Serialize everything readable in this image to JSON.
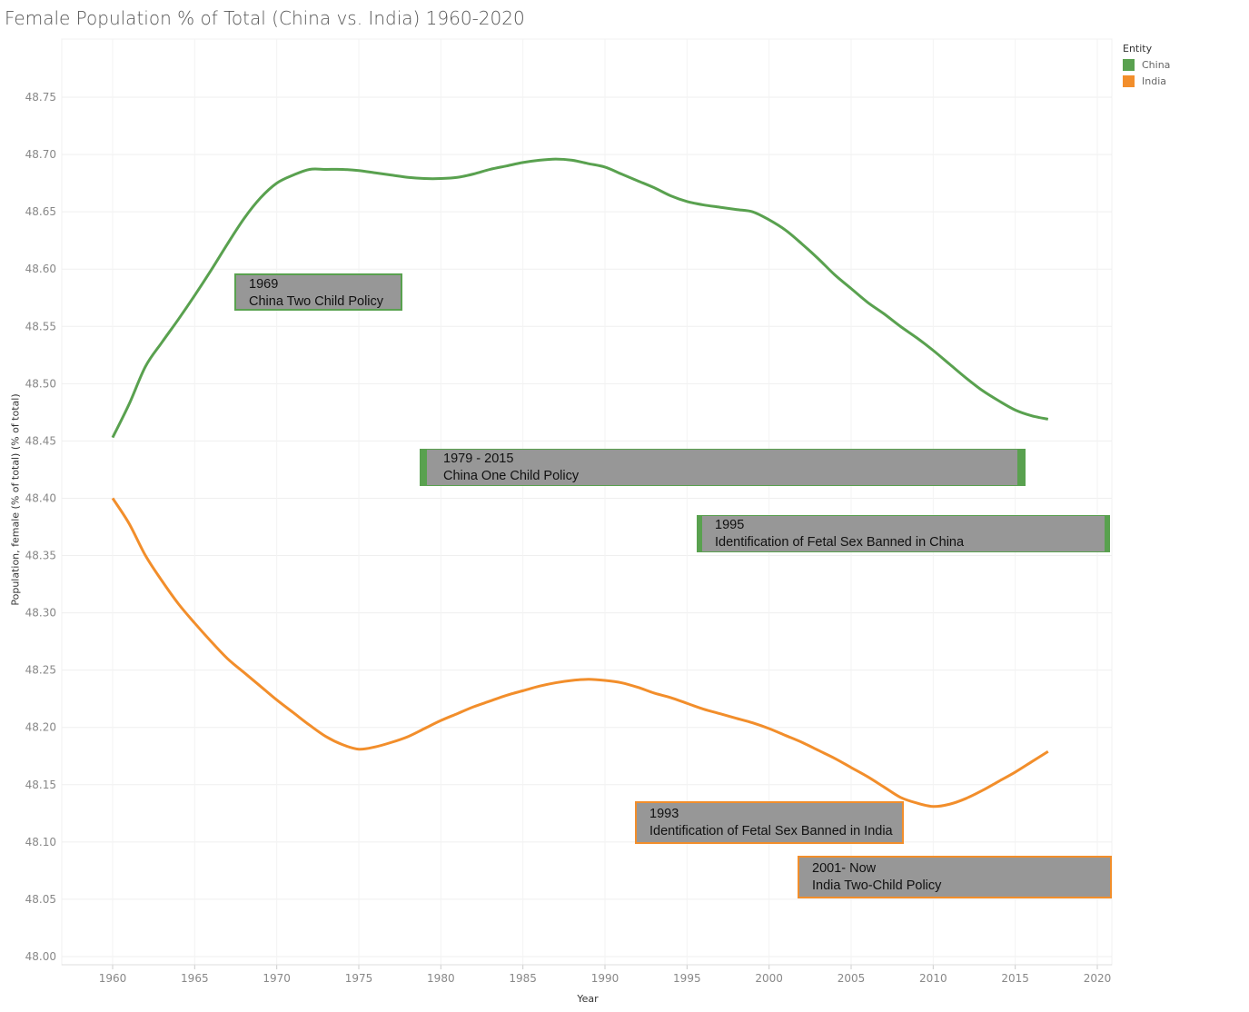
{
  "title": "Female Population % of Total (China vs. India) 1960-2020",
  "legend": {
    "title": "Entity",
    "items": [
      {
        "label": "China",
        "color": "#59a14f"
      },
      {
        "label": "India",
        "color": "#f28e2b"
      }
    ]
  },
  "annotations": [
    {
      "line1": "1969",
      "line2": "China Two Child  Policy",
      "entity": "China"
    },
    {
      "line1": "1979 - 2015",
      "line2": "China One Child  Policy",
      "entity": "China"
    },
    {
      "line1": "1995",
      "line2": "Identification of Fetal Sex Banned in China",
      "entity": "China"
    },
    {
      "line1": "1993",
      "line2": "Identification of Fetal Sex Banned in India",
      "entity": "India"
    },
    {
      "line1": "2001- Now",
      "line2": "India Two-Child Policy",
      "entity": "India"
    }
  ],
  "chart_data": {
    "type": "line",
    "title": "Female Population % of Total (China vs. India) 1960-2020",
    "xlabel": "Year",
    "ylabel": "Population, female (% of total) (% of total)",
    "xlim": [
      1957,
      2021
    ],
    "ylim": [
      48.0,
      48.8
    ],
    "xticks": [
      1960,
      1965,
      1970,
      1975,
      1980,
      1985,
      1990,
      1995,
      2000,
      2005,
      2010,
      2015,
      2020
    ],
    "yticks": [
      "48.00",
      "48.05",
      "48.10",
      "48.15",
      "48.20",
      "48.25",
      "48.30",
      "48.35",
      "48.40",
      "48.45",
      "48.50",
      "48.55",
      "48.60",
      "48.65",
      "48.70",
      "48.75"
    ],
    "grid": true,
    "legend_position": "top-right",
    "x_start": 1960,
    "series": [
      {
        "name": "China",
        "color": "#59a14f",
        "values": [
          48.453,
          48.482,
          48.515,
          48.536,
          48.556,
          48.577,
          48.599,
          48.622,
          48.644,
          48.662,
          48.675,
          48.682,
          48.687,
          48.687,
          48.687,
          48.686,
          48.684,
          48.682,
          48.68,
          48.679,
          48.679,
          48.68,
          48.683,
          48.687,
          48.69,
          48.693,
          48.695,
          48.696,
          48.695,
          48.692,
          48.689,
          48.683,
          48.677,
          48.671,
          48.664,
          48.659,
          48.656,
          48.654,
          48.652,
          48.65,
          48.643,
          48.634,
          48.622,
          48.609,
          48.595,
          48.583,
          48.571,
          48.561,
          48.55,
          48.54,
          48.529,
          48.517,
          48.505,
          48.494,
          48.485,
          48.477,
          48.472,
          48.469
        ]
      },
      {
        "name": "India",
        "color": "#f28e2b",
        "values": [
          48.4,
          48.378,
          48.35,
          48.328,
          48.308,
          48.291,
          48.275,
          48.26,
          48.248,
          48.236,
          48.224,
          48.213,
          48.202,
          48.192,
          48.185,
          48.181,
          48.183,
          48.187,
          48.192,
          48.199,
          48.206,
          48.212,
          48.218,
          48.223,
          48.228,
          48.232,
          48.236,
          48.239,
          48.241,
          48.242,
          48.241,
          48.239,
          48.235,
          48.23,
          48.226,
          48.221,
          48.216,
          48.212,
          48.208,
          48.204,
          48.199,
          48.193,
          48.187,
          48.18,
          48.173,
          48.165,
          48.157,
          48.148,
          48.139,
          48.134,
          48.131,
          48.133,
          48.138,
          48.145,
          48.153,
          48.161,
          48.17,
          48.179
        ]
      }
    ]
  }
}
